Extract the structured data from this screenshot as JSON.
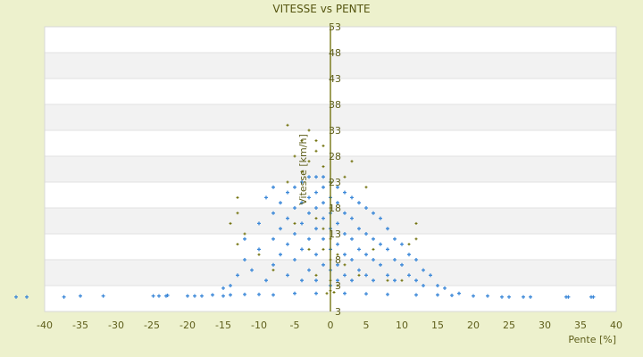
{
  "chart_data": {
    "type": "scatter",
    "title": "VITESSE vs PENTE",
    "xlabel": "Pente [%]",
    "ylabel": "Vitesse [km/h]",
    "xlim": [
      -40,
      40
    ],
    "ylim": [
      -2,
      53
    ],
    "x_ticks": [
      "-40",
      "-35",
      "-30",
      "-25",
      "-20",
      "-15",
      "-10",
      "-5",
      "0",
      "5",
      "10",
      "15",
      "20",
      "25",
      "30",
      "35",
      "40"
    ],
    "y_ticks": [
      "53",
      "48",
      "43",
      "38",
      "33",
      "28",
      "23",
      "18",
      "13",
      "8",
      "3",
      "3"
    ],
    "grid": "horizontal alternating bands",
    "colors": {
      "series1": "#3a87d8",
      "series2": "#6b6b00",
      "axis": "#6b6b00",
      "background": "#edf1cd"
    },
    "series": [
      {
        "points": [
          [
            -44,
            0.8
          ],
          [
            -42.5,
            0.8
          ],
          [
            -37.3,
            0.8
          ],
          [
            -35,
            1
          ],
          [
            -31.8,
            1
          ],
          [
            -24.8,
            1
          ],
          [
            -24,
            1
          ],
          [
            -23,
            1
          ],
          [
            -22.8,
            1.1
          ],
          [
            -20,
            1
          ],
          [
            -19,
            1
          ],
          [
            -18,
            1
          ],
          [
            -16.5,
            1.2
          ],
          [
            -15,
            1
          ],
          [
            -14,
            1.2
          ],
          [
            -12,
            1.3
          ],
          [
            -10,
            1.3
          ],
          [
            -8,
            1.2
          ],
          [
            -5,
            1.5
          ],
          [
            -2,
            1.5
          ],
          [
            2,
            1.5
          ],
          [
            5,
            1.4
          ],
          [
            8,
            1.3
          ],
          [
            12,
            1.2
          ],
          [
            15,
            1.2
          ],
          [
            17,
            1.1
          ],
          [
            18,
            1.5
          ],
          [
            20,
            1
          ],
          [
            22,
            1
          ],
          [
            24,
            0.8
          ],
          [
            25,
            0.8
          ],
          [
            27,
            0.8
          ],
          [
            28,
            0.8
          ],
          [
            33,
            0.8
          ],
          [
            33.3,
            0.8
          ],
          [
            36.5,
            0.8
          ],
          [
            36.8,
            0.8
          ],
          [
            -13,
            5
          ],
          [
            -12,
            8
          ],
          [
            -12,
            12
          ],
          [
            -11,
            6
          ],
          [
            -10,
            15
          ],
          [
            -10,
            10
          ],
          [
            -9,
            20
          ],
          [
            -9,
            4
          ],
          [
            -8,
            22
          ],
          [
            -8,
            17
          ],
          [
            -8,
            12
          ],
          [
            -8,
            7
          ],
          [
            -7,
            19
          ],
          [
            -7,
            14
          ],
          [
            -7,
            9
          ],
          [
            -6,
            21
          ],
          [
            -6,
            16
          ],
          [
            -6,
            11
          ],
          [
            -6,
            5
          ],
          [
            -5,
            22
          ],
          [
            -5,
            18
          ],
          [
            -5,
            13
          ],
          [
            -5,
            8
          ],
          [
            -4,
            23
          ],
          [
            -4,
            19
          ],
          [
            -4,
            15
          ],
          [
            -4,
            10
          ],
          [
            -4,
            4
          ],
          [
            -3,
            24
          ],
          [
            -3,
            20
          ],
          [
            -3,
            17
          ],
          [
            -3,
            12
          ],
          [
            -3,
            6
          ],
          [
            -2,
            24
          ],
          [
            -2,
            21
          ],
          [
            -2,
            18
          ],
          [
            -2,
            14
          ],
          [
            -2,
            9
          ],
          [
            -2,
            4
          ],
          [
            -1,
            24
          ],
          [
            -1,
            22
          ],
          [
            -1,
            19
          ],
          [
            -1,
            16
          ],
          [
            -1,
            12
          ],
          [
            -1,
            7
          ],
          [
            0,
            23
          ],
          [
            0,
            20
          ],
          [
            0,
            17
          ],
          [
            0,
            14
          ],
          [
            0,
            10
          ],
          [
            0,
            6
          ],
          [
            0,
            3
          ],
          [
            1,
            22
          ],
          [
            1,
            19
          ],
          [
            1,
            15
          ],
          [
            1,
            11
          ],
          [
            1,
            7
          ],
          [
            1,
            4
          ],
          [
            2,
            21
          ],
          [
            2,
            17
          ],
          [
            2,
            13
          ],
          [
            2,
            9
          ],
          [
            2,
            5
          ],
          [
            3,
            20
          ],
          [
            3,
            16
          ],
          [
            3,
            12
          ],
          [
            3,
            8
          ],
          [
            3,
            4
          ],
          [
            4,
            19
          ],
          [
            4,
            14
          ],
          [
            4,
            10
          ],
          [
            4,
            6
          ],
          [
            5,
            18
          ],
          [
            5,
            13
          ],
          [
            5,
            9
          ],
          [
            5,
            5
          ],
          [
            6,
            17
          ],
          [
            6,
            12
          ],
          [
            6,
            8
          ],
          [
            6,
            4
          ],
          [
            7,
            16
          ],
          [
            7,
            11
          ],
          [
            7,
            7
          ],
          [
            8,
            14
          ],
          [
            8,
            10
          ],
          [
            8,
            5
          ],
          [
            9,
            12
          ],
          [
            9,
            8
          ],
          [
            9,
            4
          ],
          [
            10,
            11
          ],
          [
            10,
            7
          ],
          [
            11,
            9
          ],
          [
            11,
            5
          ],
          [
            12,
            8
          ],
          [
            12,
            4
          ],
          [
            13,
            6
          ],
          [
            13,
            3
          ],
          [
            14,
            5
          ],
          [
            15,
            3
          ],
          [
            16,
            2.5
          ],
          [
            -14,
            3
          ],
          [
            -15,
            2.5
          ]
        ]
      },
      {
        "points": [
          [
            -3,
            33
          ],
          [
            -6,
            34
          ],
          [
            -4,
            31
          ],
          [
            -5,
            28
          ],
          [
            -2,
            29
          ],
          [
            -3,
            27
          ],
          [
            -13,
            20
          ],
          [
            -13,
            17
          ],
          [
            -14,
            15
          ],
          [
            -13,
            11
          ],
          [
            -12,
            13
          ],
          [
            -10,
            9
          ],
          [
            -8,
            6
          ],
          [
            -6,
            23
          ],
          [
            -4,
            25
          ],
          [
            -1,
            26
          ],
          [
            0,
            23
          ],
          [
            0,
            18
          ],
          [
            0,
            12
          ],
          [
            0,
            8
          ],
          [
            0,
            4
          ],
          [
            0,
            2
          ],
          [
            -1,
            14
          ],
          [
            -1,
            10
          ],
          [
            1,
            9
          ],
          [
            2,
            7
          ],
          [
            2,
            24
          ],
          [
            3,
            27
          ],
          [
            4,
            5
          ],
          [
            5,
            22
          ],
          [
            6,
            10
          ],
          [
            8,
            4
          ],
          [
            10,
            4
          ],
          [
            12,
            15
          ],
          [
            11,
            11
          ],
          [
            12,
            12
          ],
          [
            -2,
            16
          ],
          [
            -2,
            5
          ],
          [
            -3,
            10
          ],
          [
            -5,
            15
          ],
          [
            1,
            3
          ],
          [
            0.5,
            1.7
          ],
          [
            -0.5,
            1.5
          ],
          [
            -1,
            30
          ],
          [
            -2,
            31
          ]
        ]
      }
    ]
  }
}
